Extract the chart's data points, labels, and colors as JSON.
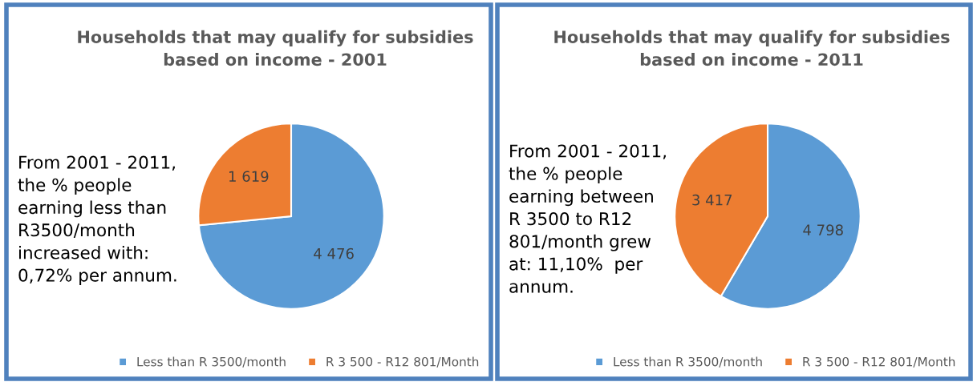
{
  "chart_data": [
    {
      "type": "pie",
      "title": "Households that may qualify for subsidies\nbased on income - 2001",
      "categories": [
        "Less than R 3500/month",
        "R 3 500 - R12 801/Month"
      ],
      "values": [
        4476,
        1619
      ],
      "value_labels": [
        "4 476",
        "1 619"
      ],
      "colors": [
        "#5b9bd5",
        "#ed7d31"
      ],
      "legend": "bottom",
      "annotations": [
        "From 2001 - 2011,\nthe % people\nearning less than\nR3500/month\nincreased with:\n0,72% per annum."
      ]
    },
    {
      "type": "pie",
      "title": "Households that may qualify for subsidies\nbased on income - 2011",
      "categories": [
        "Less than R 3500/month",
        "R 3 500 - R12 801/Month"
      ],
      "values": [
        4798,
        3417
      ],
      "value_labels": [
        "4 798",
        "3 417"
      ],
      "colors": [
        "#5b9bd5",
        "#ed7d31"
      ],
      "legend": "bottom",
      "annotations": [
        "From 2001 - 2011,\nthe % people\nearning between\nR 3500 to R12\n801/month grew\nat: 11,10%  per\nannum."
      ]
    }
  ]
}
